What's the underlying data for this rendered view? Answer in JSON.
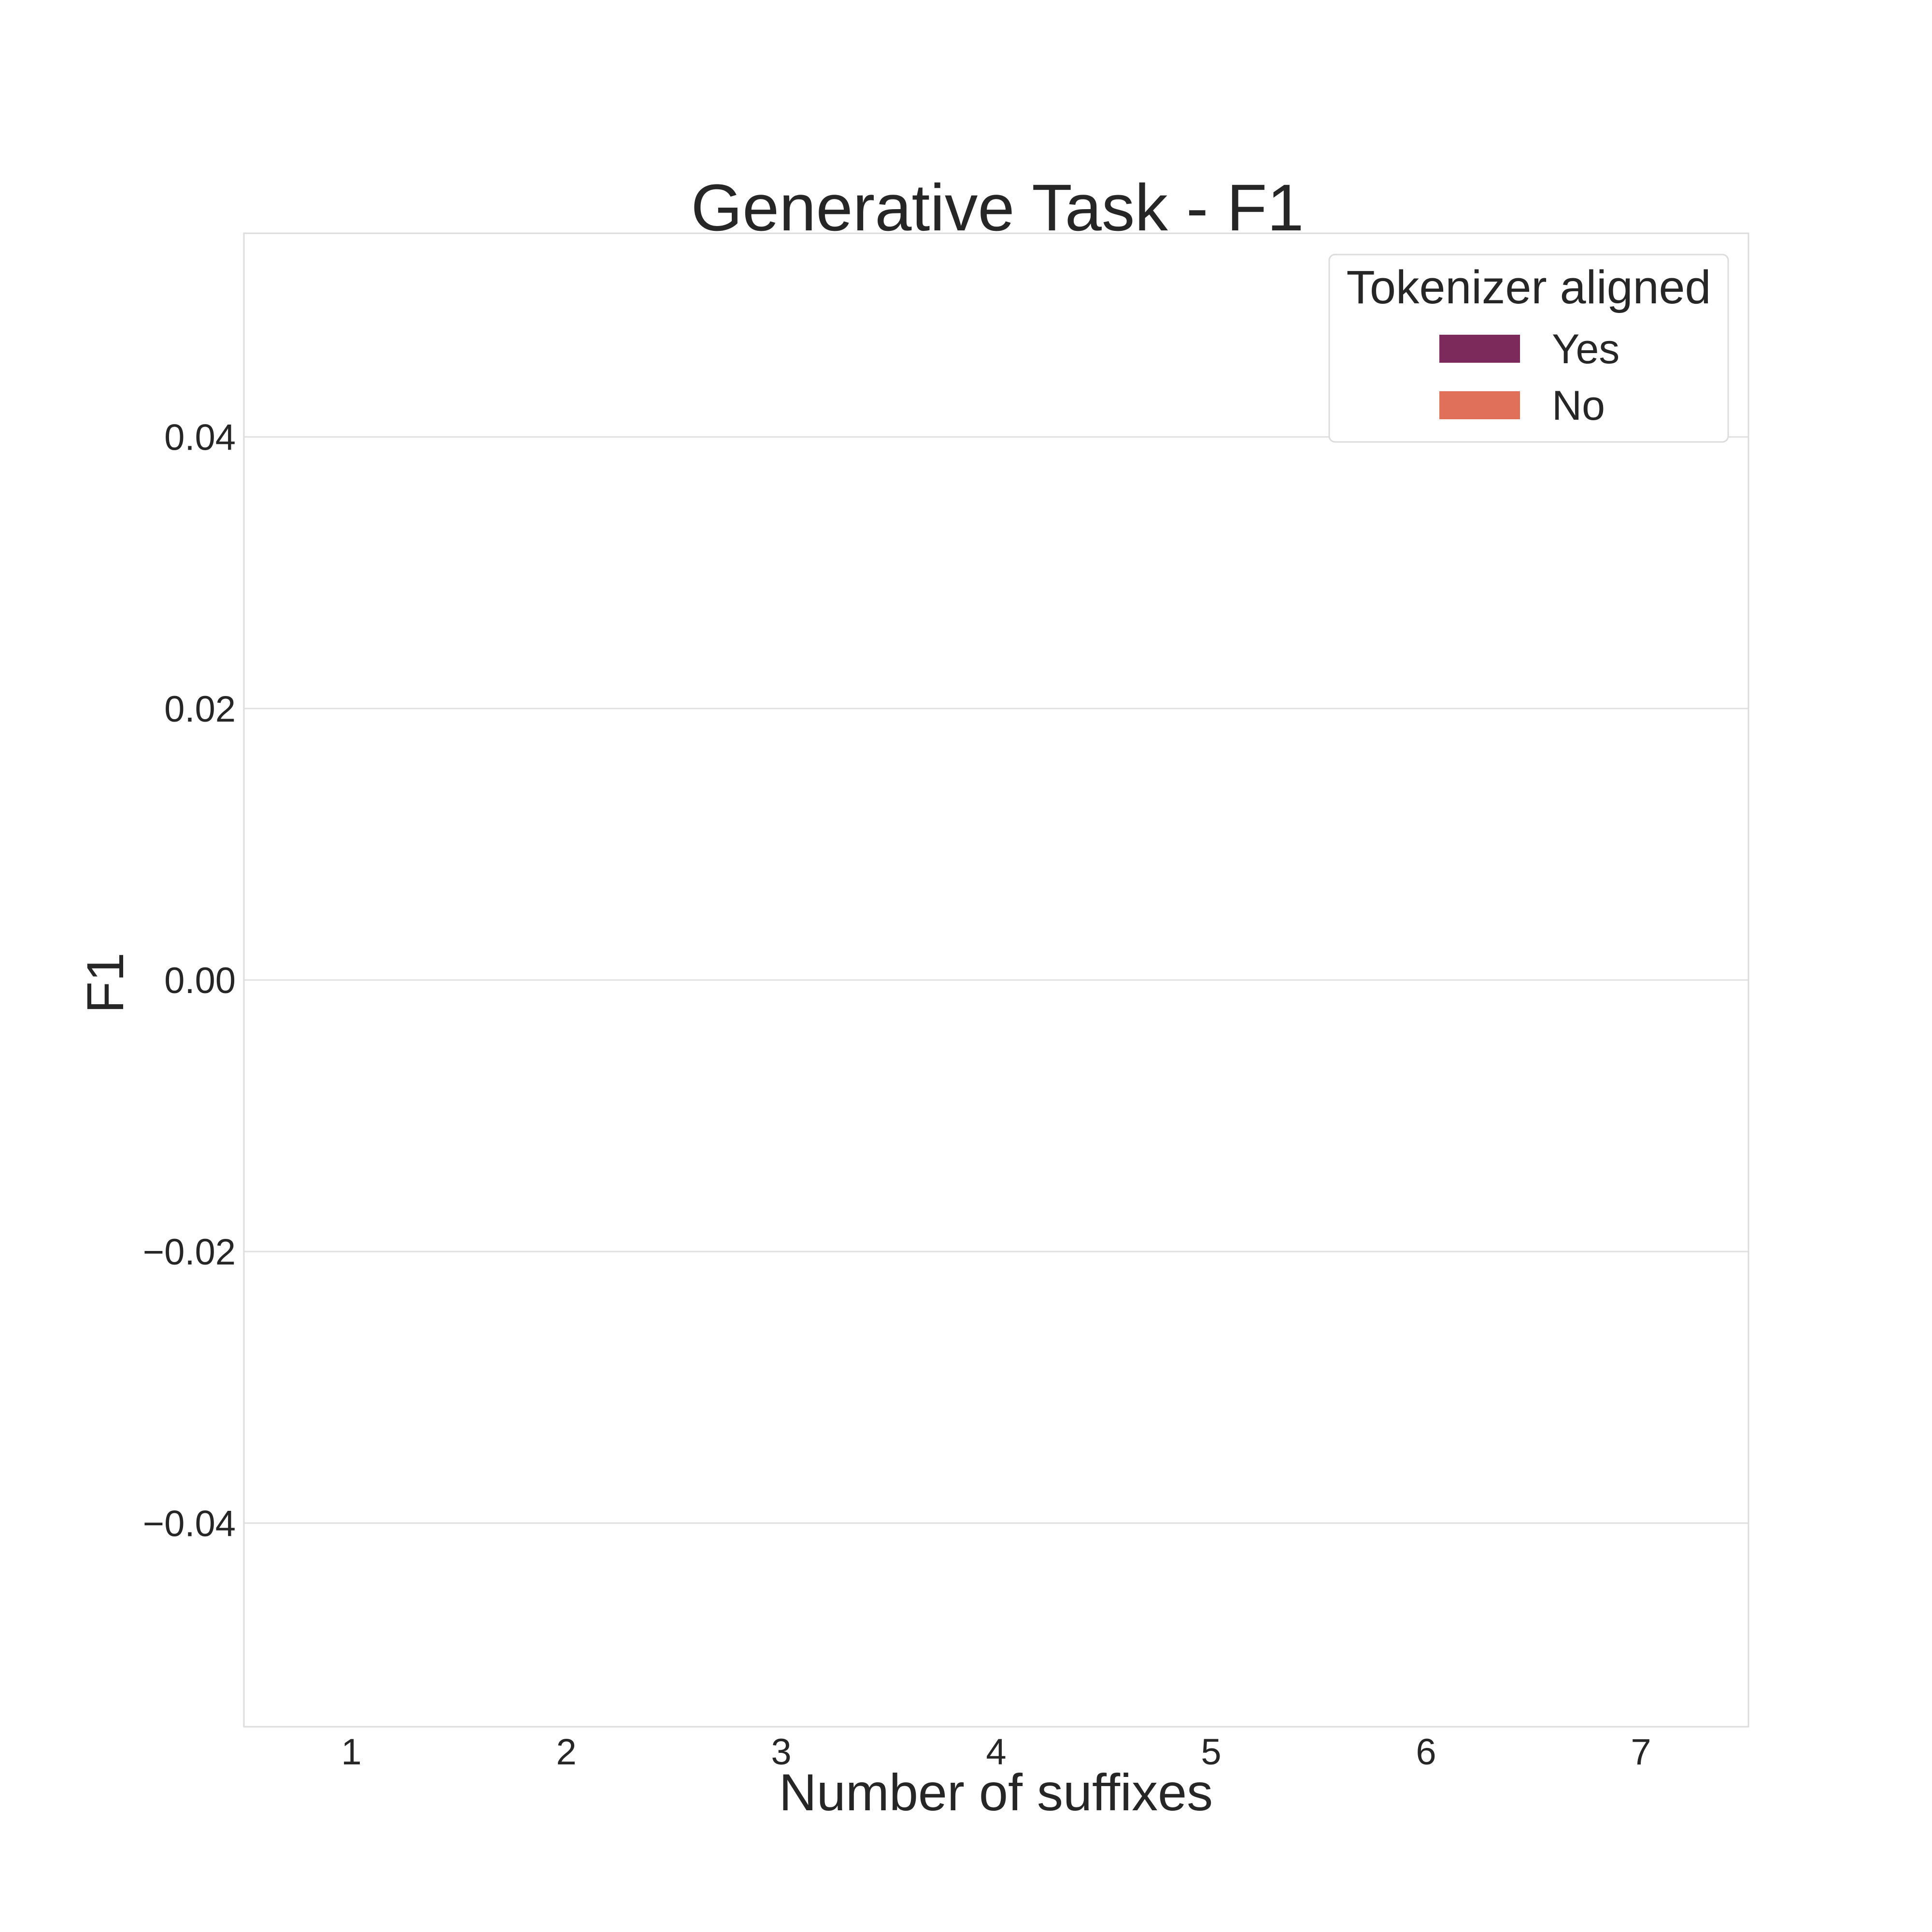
{
  "chart_data": {
    "type": "bar",
    "title": "Generative Task - F1",
    "xlabel": "Number of suffixes",
    "ylabel": "F1",
    "categories": [
      "1",
      "2",
      "3",
      "4",
      "5",
      "6",
      "7"
    ],
    "series": [
      {
        "name": "Yes",
        "color": "#7b2a5b",
        "values": [
          0,
          0,
          0,
          0,
          0,
          0,
          0
        ]
      },
      {
        "name": "No",
        "color": "#e0705a",
        "values": [
          0,
          0,
          0,
          0,
          0,
          0,
          0
        ]
      }
    ],
    "ylim": [
      -0.055,
      0.055
    ],
    "yticks": [
      -0.04,
      -0.02,
      0.0,
      0.02,
      0.04
    ],
    "ytick_labels": [
      "−0.04",
      "−0.02",
      "0.00",
      "0.02",
      "0.04"
    ],
    "grid": true,
    "legend": {
      "title": "Tokenizer aligned",
      "placement": "top-right"
    }
  }
}
